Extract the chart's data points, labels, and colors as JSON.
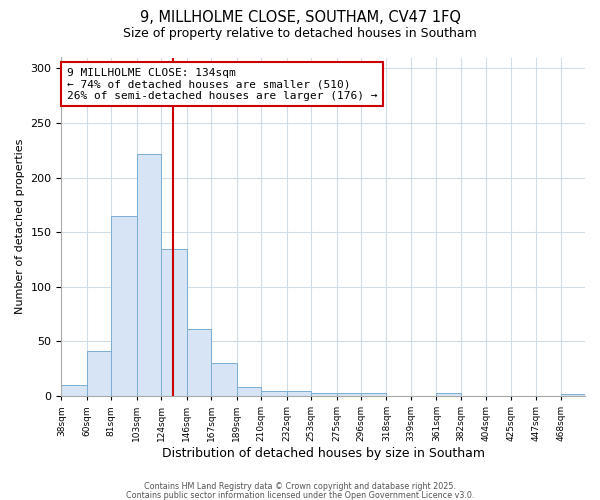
{
  "title1": "9, MILLHOLME CLOSE, SOUTHAM, CV47 1FQ",
  "title2": "Size of property relative to detached houses in Southam",
  "xlabel": "Distribution of detached houses by size in Southam",
  "ylabel": "Number of detached properties",
  "bins": [
    38,
    60,
    81,
    103,
    124,
    146,
    167,
    189,
    210,
    232,
    253,
    275,
    296,
    318,
    339,
    361,
    382,
    404,
    425,
    447,
    468
  ],
  "counts": [
    10,
    41,
    165,
    222,
    135,
    61,
    30,
    8,
    5,
    5,
    3,
    3,
    3,
    0,
    0,
    3,
    0,
    0,
    0,
    0,
    2
  ],
  "bar_color": "#d6e4f5",
  "bar_edge_color": "#7badd4",
  "property_size": 134,
  "vline_color": "#cc0000",
  "annotation_text": "9 MILLHOLME CLOSE: 134sqm\n← 74% of detached houses are smaller (510)\n26% of semi-detached houses are larger (176) →",
  "annotation_box_color": "#ffffff",
  "annotation_box_edge": "#cc0000",
  "ylim": [
    0,
    310
  ],
  "bg_color": "#ffffff",
  "grid_color": "#d0dce8",
  "footnote1": "Contains HM Land Registry data © Crown copyright and database right 2025.",
  "footnote2": "Contains public sector information licensed under the Open Government Licence v3.0.",
  "tick_labels": [
    "38sqm",
    "60sqm",
    "81sqm",
    "103sqm",
    "124sqm",
    "146sqm",
    "167sqm",
    "189sqm",
    "210sqm",
    "232sqm",
    "253sqm",
    "275sqm",
    "296sqm",
    "318sqm",
    "339sqm",
    "361sqm",
    "382sqm",
    "404sqm",
    "425sqm",
    "447sqm",
    "468sqm"
  ]
}
